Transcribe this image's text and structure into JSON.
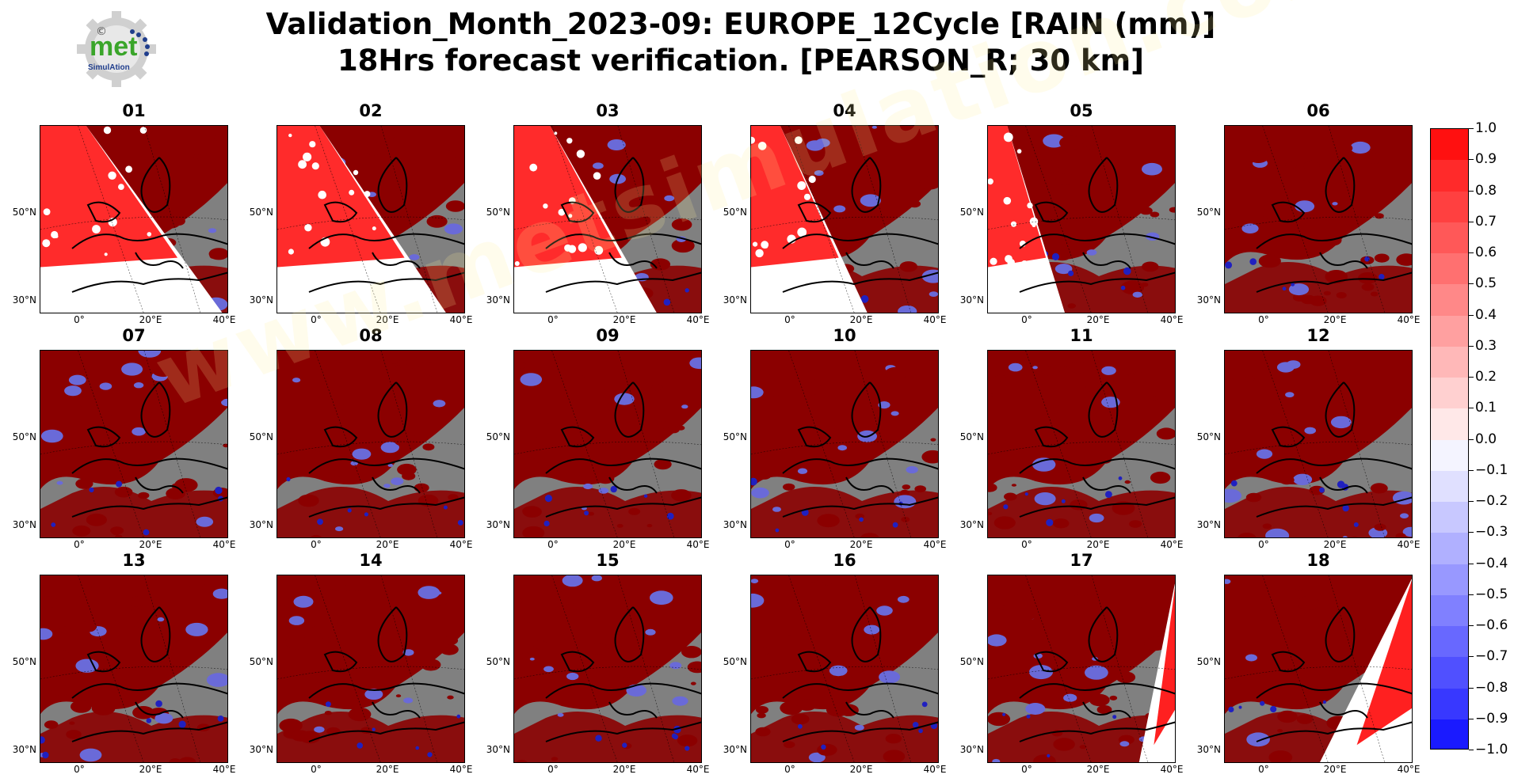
{
  "title_line1": "Validation_Month_2023-09: EUROPE_12Cycle [RAIN (mm)]",
  "title_line2": "18Hrs forecast verification.  [PEARSON_R; 30 km]",
  "logo": {
    "text": "met",
    "subtext": "SimulAtion",
    "symbol": "©",
    "colors": {
      "green": "#3aa52a",
      "blue": "#1f3d8c",
      "gear": "#cfcfcf"
    }
  },
  "watermark": "www.metsimulation.com",
  "axes": {
    "ytick_labels": [
      "50°N",
      "30°N"
    ],
    "xtick_labels": [
      "0°",
      "20°E",
      "40°E"
    ]
  },
  "panels": [
    {
      "label": "01",
      "no_data_fraction": 0.55
    },
    {
      "label": "02",
      "no_data_fraction": 0.5
    },
    {
      "label": "03",
      "no_data_fraction": 0.4
    },
    {
      "label": "04",
      "no_data_fraction": 0.3
    },
    {
      "label": "05",
      "no_data_fraction": 0.15
    },
    {
      "label": "06",
      "no_data_fraction": 0
    },
    {
      "label": "07",
      "no_data_fraction": 0
    },
    {
      "label": "08",
      "no_data_fraction": 0
    },
    {
      "label": "09",
      "no_data_fraction": 0
    },
    {
      "label": "10",
      "no_data_fraction": 0
    },
    {
      "label": "11",
      "no_data_fraction": 0
    },
    {
      "label": "12",
      "no_data_fraction": 0
    },
    {
      "label": "13",
      "no_data_fraction": 0
    },
    {
      "label": "14",
      "no_data_fraction": 0
    },
    {
      "label": "15",
      "no_data_fraction": 0
    },
    {
      "label": "16",
      "no_data_fraction": 0
    },
    {
      "label": "17",
      "no_data_fraction": 0.1
    },
    {
      "label": "18",
      "no_data_fraction": 0.25
    }
  ],
  "colorbar": {
    "tick_labels": [
      "1.0",
      "0.9",
      "0.8",
      "0.7",
      "0.6",
      "0.5",
      "0.4",
      "0.3",
      "0.2",
      "0.1",
      "0.0",
      "−0.1",
      "−0.2",
      "−0.3",
      "−0.4",
      "−0.5",
      "−0.6",
      "−0.7",
      "−0.8",
      "−0.9",
      "−1.0"
    ],
    "colors": [
      "#ff1010",
      "#ff2a2a",
      "#ff4040",
      "#ff5858",
      "#ff7070",
      "#ff8888",
      "#ffa0a0",
      "#ffb8b8",
      "#ffd0d0",
      "#ffe8e8",
      "#f4f4ff",
      "#e0e0ff",
      "#c8c8ff",
      "#b0b0ff",
      "#9898ff",
      "#8080ff",
      "#6868ff",
      "#5050ff",
      "#3838ff",
      "#1a1aff"
    ]
  },
  "colors": {
    "ocean_nodata": "#808080",
    "high_corr": "#8b0000",
    "mid_corr": "#ff2020",
    "low_corr": "#2020c0"
  }
}
